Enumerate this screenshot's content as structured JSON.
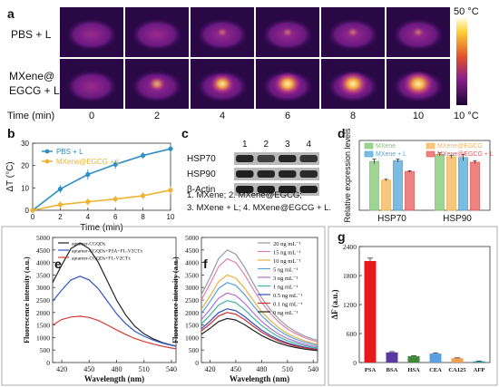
{
  "panels": {
    "a": "a",
    "b": "b",
    "c": "c",
    "d": "d",
    "e": "e",
    "f": "f",
    "g": "g"
  },
  "thermal": {
    "row_labels": [
      [
        "PBS + L"
      ],
      [
        "MXene@",
        "EGCG + L"
      ]
    ],
    "time_label": "Time (min)",
    "times": [
      "0",
      "2",
      "4",
      "6",
      "8",
      "10"
    ],
    "scale_max": "50 °C",
    "scale_min": "10 °C",
    "spot_intensity": {
      "pbs": [
        0,
        0,
        0.05,
        0.05,
        0.08,
        0.08
      ],
      "mxene": [
        0,
        0.35,
        0.65,
        0.8,
        0.9,
        0.95
      ]
    },
    "colors": {
      "bg": "#2a0845",
      "mid": "#8a1e8c",
      "hot": "#ffd24a"
    }
  },
  "blot": {
    "lanes": [
      "1",
      "2",
      "3",
      "4"
    ],
    "rows": [
      "HSP70",
      "HSP90",
      "β-Actin"
    ],
    "legend": [
      "1. MXene; 2. MXene@EGCG;",
      "3. MXene + L; 4. MXene@EGCG + L."
    ]
  },
  "chart_data": [
    {
      "id": "b",
      "type": "line",
      "xlabel": "Time  (min)",
      "ylabel": "ΔT  (°C)",
      "xlim": [
        0,
        10
      ],
      "ylim": [
        0,
        30
      ],
      "xticks": [
        "0",
        "2",
        "4",
        "6",
        "8",
        "10"
      ],
      "yticks": [
        "0",
        "10",
        "20",
        "30"
      ],
      "series": [
        {
          "name": "PBS + L",
          "color": "#2e8fc4",
          "x": [
            0,
            2,
            4,
            6,
            8,
            10
          ],
          "y": [
            0,
            9.5,
            16,
            20.5,
            24.5,
            27.5
          ],
          "err": [
            0.5,
            1.8,
            2.2,
            2,
            1.5,
            2.2
          ]
        },
        {
          "name": "MXene@EGCG + L",
          "color": "#f0b232",
          "x": [
            0,
            2,
            4,
            6,
            8,
            10
          ],
          "y": [
            0,
            2.5,
            3.8,
            5,
            6.5,
            9
          ],
          "err": [
            0.5,
            1.5,
            1.6,
            1.5,
            1.6,
            1.8
          ]
        }
      ]
    },
    {
      "id": "d",
      "type": "bar",
      "ylabel": "Relative expression levels",
      "ylim": [
        0,
        0.9
      ],
      "categories": [
        "HSP70",
        "HSP90"
      ],
      "series": [
        {
          "name": "MXene",
          "color": "#7dc76f",
          "values": [
            0.63,
            0.72
          ],
          "err": [
            0.03,
            0.02
          ]
        },
        {
          "name": "MXene@EGCG",
          "color": "#f2b457",
          "values": [
            0.39,
            0.69
          ],
          "err": [
            0.01,
            0.02
          ]
        },
        {
          "name": "MXene + L",
          "color": "#4fa6d8",
          "values": [
            0.64,
            0.68
          ],
          "err": [
            0.02,
            0.04
          ]
        },
        {
          "name": "MXene@EGCG + L",
          "color": "#e45a5a",
          "values": [
            0.5,
            0.62
          ],
          "err": [
            0.01,
            0.02
          ]
        }
      ]
    },
    {
      "id": "e",
      "type": "line",
      "xlabel": "Wavelength (nm)",
      "ylabel": "Fluorescence intensity (a.u.)",
      "xlim": [
        410,
        545
      ],
      "ylim": [
        0,
        5000
      ],
      "xticks": [
        "420",
        "450",
        "480",
        "510",
        "540"
      ],
      "yticks": [
        "0",
        "500",
        "1000",
        "1500",
        "2000",
        "2500",
        "3000",
        "3500",
        "4000",
        "4500",
        "5000"
      ],
      "series": [
        {
          "name": "aptamer-CGQDs",
          "color": "#222222",
          "x": [
            410,
            420,
            430,
            440,
            450,
            460,
            470,
            480,
            490,
            500,
            510,
            520,
            530,
            540,
            545
          ],
          "y": [
            3200,
            3900,
            4550,
            4780,
            4550,
            4000,
            3250,
            2500,
            1900,
            1450,
            1150,
            950,
            800,
            700,
            660
          ]
        },
        {
          "name": "aptamer-CGQDs+PSA+FL-V2CTx",
          "color": "#2f55c4",
          "x": [
            410,
            420,
            430,
            440,
            450,
            460,
            470,
            480,
            490,
            500,
            510,
            520,
            530,
            540,
            545
          ],
          "y": [
            2450,
            2900,
            3300,
            3450,
            3300,
            2950,
            2450,
            1950,
            1550,
            1250,
            1050,
            900,
            780,
            690,
            650
          ]
        },
        {
          "name": "aptamer-CGQDs+FL-V2CTx",
          "color": "#d63a2f",
          "x": [
            410,
            420,
            430,
            440,
            450,
            460,
            470,
            480,
            490,
            500,
            510,
            520,
            530,
            540,
            545
          ],
          "y": [
            1500,
            1720,
            1820,
            1850,
            1800,
            1680,
            1500,
            1300,
            1120,
            960,
            840,
            740,
            650,
            580,
            550
          ]
        }
      ]
    },
    {
      "id": "f",
      "type": "line",
      "xlabel": "Wavelength (nm)",
      "ylabel": "Fluorescence intensity (a.u.)",
      "xlim": [
        410,
        545
      ],
      "ylim": [
        0,
        5000
      ],
      "xticks": [
        "420",
        "450",
        "480",
        "510",
        "540"
      ],
      "yticks": [
        "0",
        "500",
        "1000",
        "1500",
        "2000",
        "2500",
        "3000",
        "3500",
        "4000",
        "4500",
        "5000"
      ],
      "peaks": [
        4500,
        4150,
        3500,
        3200,
        2780,
        2480,
        2150,
        2000,
        1760
      ],
      "series": [
        {
          "name": "20 ng mL⁻¹",
          "color": "#9a9a9a"
        },
        {
          "name": "15 ng mL⁻¹",
          "color": "#e07fb0"
        },
        {
          "name": "10 ng mL⁻¹",
          "color": "#e8b040"
        },
        {
          "name": "5 ng mL⁻¹",
          "color": "#5aa0e0"
        },
        {
          "name": "3 ng mL⁻¹",
          "color": "#b070d0"
        },
        {
          "name": "1 ng mL⁻¹",
          "color": "#40b0a0"
        },
        {
          "name": "0.5 ng mL⁻¹",
          "color": "#2a4fc0"
        },
        {
          "name": "0.1 ng mL⁻¹",
          "color": "#d03030"
        },
        {
          "name": "0 ng mL⁻¹",
          "color": "#222222"
        }
      ]
    },
    {
      "id": "g",
      "type": "bar",
      "ylabel": "ΔF (a.u.)",
      "ylim": [
        0,
        2400
      ],
      "yticks": [
        "0",
        "600",
        "1200",
        "1800",
        "2400"
      ],
      "categories": [
        "PSA",
        "BSA",
        "HSA",
        "CEA",
        "CA125",
        "AFP"
      ],
      "values": [
        2100,
        210,
        130,
        185,
        90,
        25
      ],
      "err": [
        60,
        15,
        10,
        12,
        8,
        4
      ],
      "colors": [
        "#e8191b",
        "#5a3aa0",
        "#3e8a36",
        "#5aa0e0",
        "#f0a050",
        "#2aa0a0"
      ]
    }
  ]
}
